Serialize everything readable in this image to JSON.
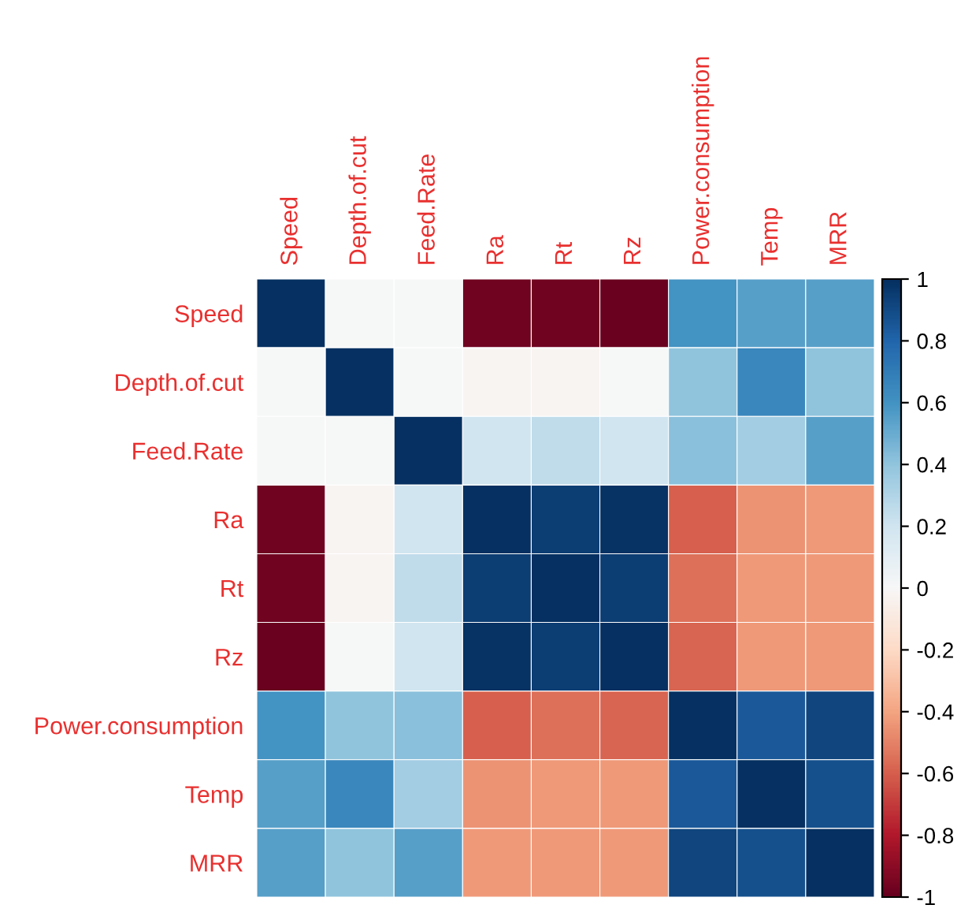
{
  "chart_data": {
    "type": "heatmap",
    "categories": [
      "Speed",
      "Depth.of.cut",
      "Feed.Rate",
      "Ra",
      "Rt",
      "Rz",
      "Power.consumption",
      "Temp",
      "MRR"
    ],
    "y_categories": [
      "Speed",
      "Depth.of.cut",
      "Feed.Rate",
      "Ra",
      "Rt",
      "Rz",
      "Power.consumption",
      "Temp",
      "MRR"
    ],
    "cells": [
      [
        1,
        0,
        0,
        -0.97,
        -0.97,
        -0.99,
        0.6,
        0.55,
        0.55
      ],
      [
        0,
        1,
        0,
        -0.02,
        -0.02,
        0,
        0.4,
        0.65,
        0.4
      ],
      [
        0,
        0,
        1,
        0.2,
        0.25,
        0.2,
        0.42,
        0.35,
        0.55
      ],
      [
        -0.97,
        -0.02,
        0.2,
        1,
        0.95,
        0.99,
        -0.6,
        -0.45,
        -0.43
      ],
      [
        -0.97,
        -0.02,
        0.25,
        0.95,
        1,
        0.95,
        -0.55,
        -0.43,
        -0.43
      ],
      [
        -0.99,
        0,
        0.2,
        0.99,
        0.95,
        1,
        -0.58,
        -0.43,
        -0.43
      ],
      [
        0.6,
        0.4,
        0.42,
        -0.6,
        -0.55,
        -0.58,
        1,
        0.85,
        0.92
      ],
      [
        0.55,
        0.65,
        0.35,
        -0.45,
        -0.43,
        -0.43,
        0.85,
        1,
        0.88
      ],
      [
        0.55,
        0.4,
        0.55,
        -0.43,
        -0.43,
        -0.43,
        0.92,
        0.88,
        1
      ]
    ],
    "clim": [
      -1,
      1
    ],
    "cticks": [
      -1,
      -0.8,
      -0.6,
      -0.4,
      -0.2,
      0,
      0.2,
      0.4,
      0.6,
      0.8,
      1
    ]
  }
}
